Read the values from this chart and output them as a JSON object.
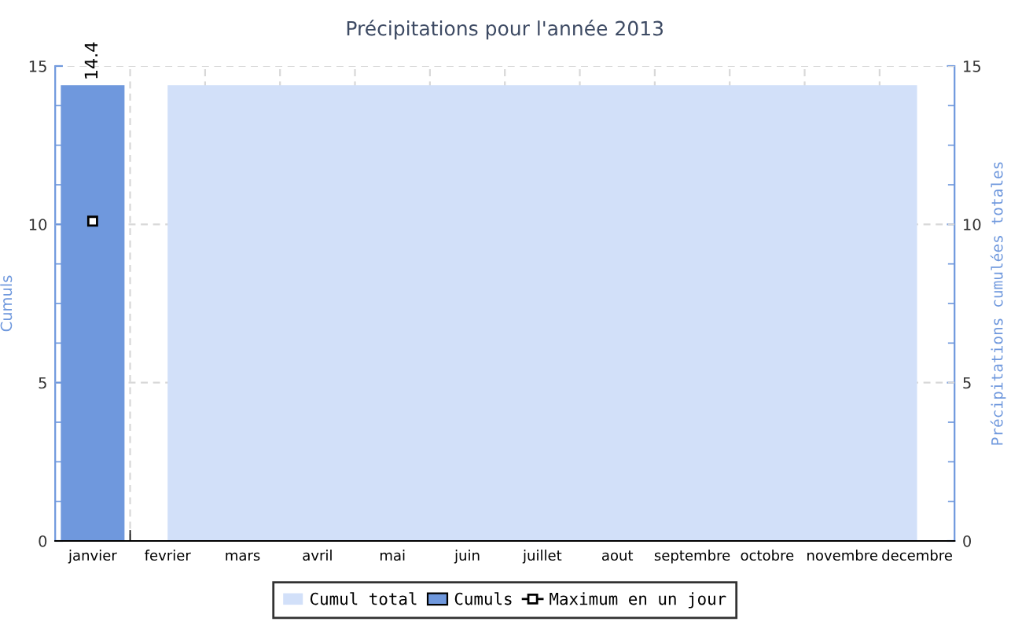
{
  "chart_data": {
    "type": "bar",
    "title": "Précipitations pour l'année 2013",
    "ylabel": "Cumuls",
    "y2label": "Précipitations cumulées totales",
    "categories": [
      "janvier",
      "fevrier",
      "mars",
      "avril",
      "mai",
      "juin",
      "juillet",
      "aout",
      "septembre",
      "octobre",
      "novembre",
      "decembre"
    ],
    "series": [
      {
        "name": "Cumul total",
        "type": "area",
        "color": "#d2e0f9",
        "values": [
          null,
          14.4,
          14.4,
          14.4,
          14.4,
          14.4,
          14.4,
          14.4,
          14.4,
          14.4,
          14.4,
          14.4
        ]
      },
      {
        "name": "Cumuls",
        "color": "#6f98dd",
        "values": [
          14.4,
          null,
          null,
          null,
          null,
          null,
          null,
          null,
          null,
          null,
          null,
          null
        ],
        "value_labels": [
          "14.4",
          null,
          null,
          null,
          null,
          null,
          null,
          null,
          null,
          null,
          null,
          null
        ]
      },
      {
        "name": "Maximum en un jour",
        "type": "line",
        "marker": "square",
        "color": "#000000",
        "values": [
          10.1,
          null,
          null,
          null,
          null,
          null,
          null,
          null,
          null,
          null,
          null,
          null
        ]
      }
    ],
    "ylim": [
      0,
      15
    ],
    "yticks": [
      0,
      5,
      10,
      15
    ],
    "y2lim": [
      0,
      15
    ],
    "y2ticks": [
      0,
      5,
      10,
      15
    ],
    "grid": true,
    "legend": "bottom"
  }
}
